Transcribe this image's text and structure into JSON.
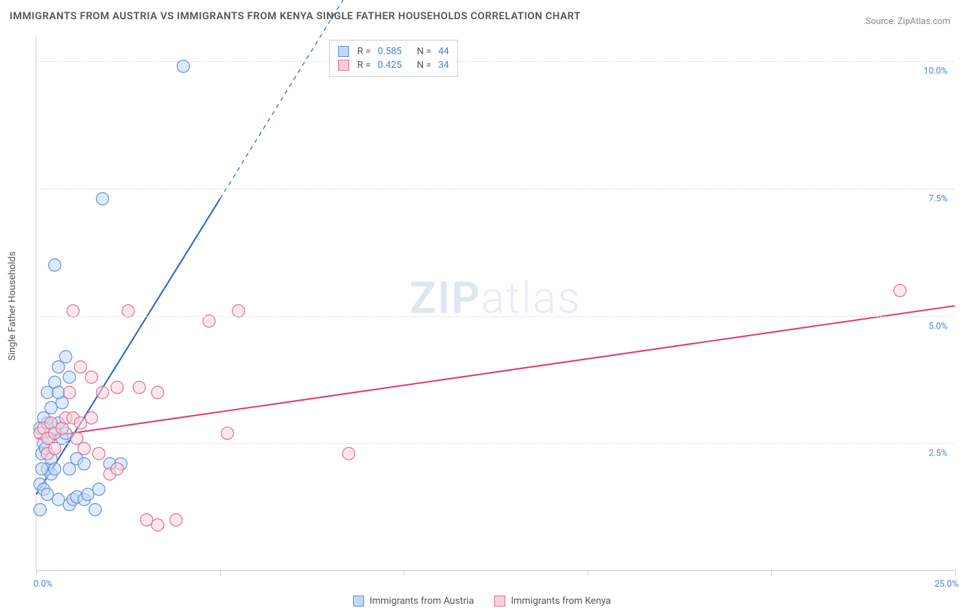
{
  "title": "IMMIGRANTS FROM AUSTRIA VS IMMIGRANTS FROM KENYA SINGLE FATHER HOUSEHOLDS CORRELATION CHART",
  "source": "Source: ZipAtlas.com",
  "axis": {
    "y_title": "Single Father Households",
    "xlim": [
      0,
      25
    ],
    "ylim": [
      0,
      10.5
    ],
    "x_ticks": [
      0,
      5,
      10,
      15,
      20,
      25
    ],
    "y_ticks": [
      2.5,
      5.0,
      7.5,
      10.0
    ],
    "x_labels": {
      "0": "0.0%",
      "25": "25.0%"
    },
    "y_labels": {
      "2.5": "2.5%",
      "5.0": "5.0%",
      "7.5": "7.5%",
      "10.0": "10.0%"
    }
  },
  "watermark": {
    "prefix": "ZIP",
    "suffix": "atlas"
  },
  "legend_stats": {
    "blue": {
      "R": "0.585",
      "N": "44"
    },
    "pink": {
      "R": "0.425",
      "N": "34"
    }
  },
  "bottom_legend": {
    "blue": "Immigrants from Austria",
    "pink": "Immigrants from Kenya"
  },
  "series": {
    "blue": {
      "color_fill": "#c3d7f5",
      "color_stroke": "#5b8dd6",
      "marker_r": 9,
      "fill_opacity": 0.55,
      "line_color": "#3066c7",
      "line_width": 2.2,
      "trend": {
        "x1": 0.0,
        "y1": 1.5,
        "x2": 5.0,
        "y2": 7.3,
        "dash_x2": 9.2,
        "dash_y2": 12.2
      },
      "points": [
        [
          0.1,
          2.8
        ],
        [
          0.2,
          2.5
        ],
        [
          0.3,
          2.9
        ],
        [
          0.15,
          2.3
        ],
        [
          0.25,
          2.4
        ],
        [
          0.35,
          2.6
        ],
        [
          0.2,
          3.0
        ],
        [
          0.1,
          1.7
        ],
        [
          0.3,
          2.0
        ],
        [
          0.4,
          2.2
        ],
        [
          0.5,
          2.8
        ],
        [
          0.6,
          2.9
        ],
        [
          0.4,
          3.2
        ],
        [
          0.7,
          3.3
        ],
        [
          0.3,
          3.5
        ],
        [
          0.5,
          3.7
        ],
        [
          0.6,
          4.0
        ],
        [
          0.8,
          4.2
        ],
        [
          0.4,
          1.9
        ],
        [
          0.5,
          2.0
        ],
        [
          0.2,
          1.6
        ],
        [
          0.9,
          1.3
        ],
        [
          1.0,
          1.4
        ],
        [
          1.1,
          1.45
        ],
        [
          1.3,
          1.4
        ],
        [
          1.4,
          1.5
        ],
        [
          1.6,
          1.2
        ],
        [
          1.7,
          1.6
        ],
        [
          2.0,
          2.1
        ],
        [
          2.3,
          2.1
        ],
        [
          1.1,
          2.2
        ],
        [
          1.3,
          2.1
        ],
        [
          0.1,
          1.2
        ],
        [
          0.7,
          2.6
        ],
        [
          0.8,
          2.7
        ],
        [
          0.5,
          6.0
        ],
        [
          1.8,
          7.3
        ],
        [
          4.0,
          9.9
        ],
        [
          0.9,
          3.8
        ],
        [
          0.6,
          3.5
        ],
        [
          0.15,
          2.0
        ],
        [
          0.3,
          1.5
        ],
        [
          0.9,
          2.0
        ],
        [
          0.6,
          1.4
        ]
      ]
    },
    "pink": {
      "color_fill": "#f7d3dd",
      "color_stroke": "#e06a8a",
      "marker_r": 9,
      "fill_opacity": 0.55,
      "line_color": "#e23d6d",
      "line_width": 2.2,
      "trend": {
        "x1": 0.0,
        "y1": 2.6,
        "x2": 25.0,
        "y2": 5.2
      },
      "points": [
        [
          0.1,
          2.7
        ],
        [
          0.2,
          2.8
        ],
        [
          0.3,
          2.6
        ],
        [
          0.4,
          2.9
        ],
        [
          0.5,
          2.7
        ],
        [
          0.7,
          2.8
        ],
        [
          0.8,
          3.0
        ],
        [
          1.0,
          3.0
        ],
        [
          1.2,
          2.9
        ],
        [
          1.5,
          3.0
        ],
        [
          0.3,
          2.3
        ],
        [
          0.5,
          2.4
        ],
        [
          0.9,
          3.5
        ],
        [
          1.2,
          4.0
        ],
        [
          1.5,
          3.8
        ],
        [
          1.8,
          3.5
        ],
        [
          2.2,
          3.6
        ],
        [
          2.8,
          3.6
        ],
        [
          3.3,
          3.5
        ],
        [
          1.0,
          5.1
        ],
        [
          2.5,
          5.1
        ],
        [
          4.7,
          4.9
        ],
        [
          5.5,
          5.1
        ],
        [
          1.7,
          2.3
        ],
        [
          2.0,
          1.9
        ],
        [
          1.3,
          2.4
        ],
        [
          2.2,
          2.0
        ],
        [
          3.0,
          1.0
        ],
        [
          3.3,
          0.9
        ],
        [
          5.2,
          2.7
        ],
        [
          8.5,
          2.3
        ],
        [
          3.8,
          1.0
        ],
        [
          23.5,
          5.5
        ],
        [
          1.1,
          2.6
        ]
      ]
    }
  },
  "colors": {
    "grid": "#dddddd",
    "axis": "#cccccc",
    "tick_label": "#4a7fd6",
    "text": "#555555",
    "background": "#ffffff"
  }
}
